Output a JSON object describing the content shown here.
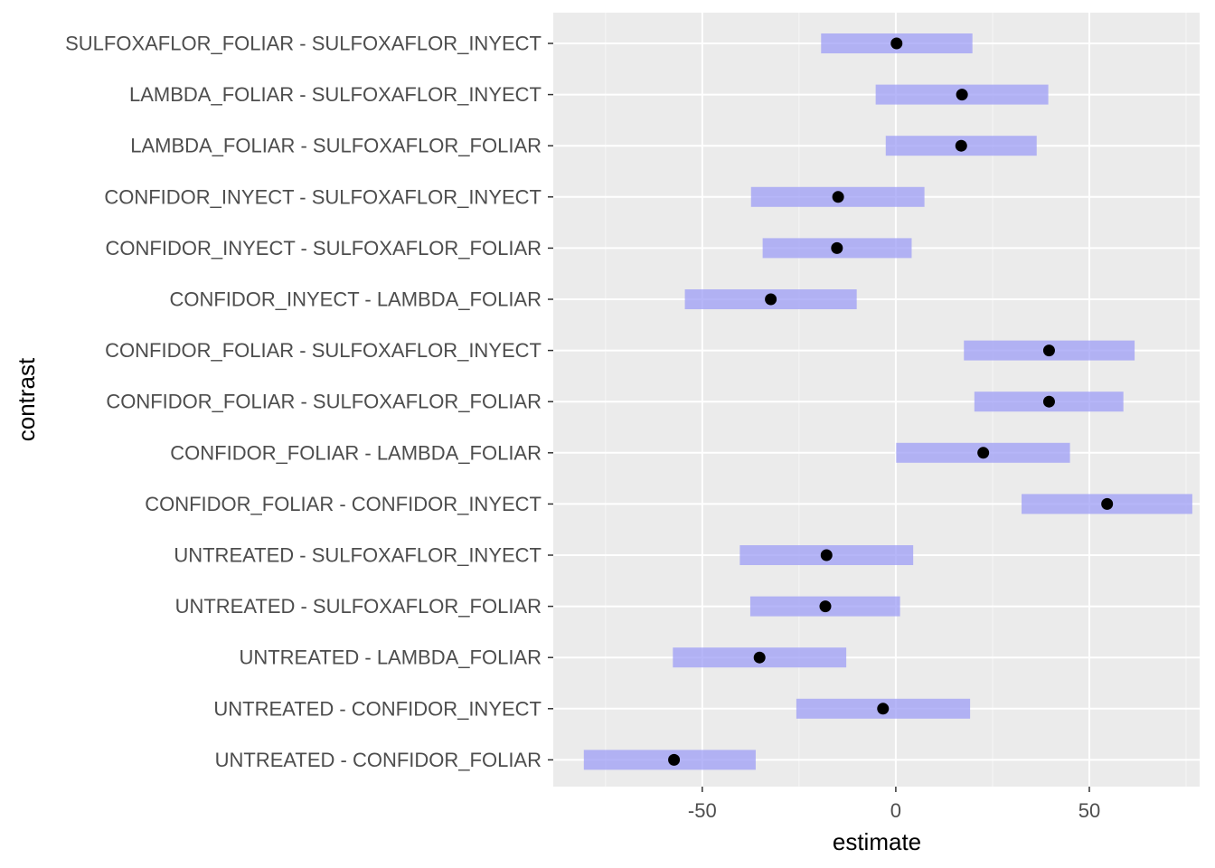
{
  "chart_data": {
    "type": "scatter",
    "xlabel": "estimate",
    "ylabel": "contrast",
    "xlim": [
      -88.5,
      78.5
    ],
    "x_ticks": [
      -50,
      0,
      50
    ],
    "x_tick_labels": [
      "-50",
      "0",
      "50"
    ],
    "grid": true,
    "legend": "none",
    "colors": {
      "panel_background": "#ebebeb",
      "grid_major": "#ffffff",
      "interval": "#9a9af5",
      "point": "#000000",
      "tick_text": "#4d4d4d"
    },
    "categories": [
      "SULFOXAFLOR_FOLIAR - SULFOXAFLOR_INYECT",
      "LAMBDA_FOLIAR - SULFOXAFLOR_INYECT",
      "LAMBDA_FOLIAR - SULFOXAFLOR_FOLIAR",
      "CONFIDOR_INYECT - SULFOXAFLOR_INYECT",
      "CONFIDOR_INYECT - SULFOXAFLOR_FOLIAR",
      "CONFIDOR_INYECT - LAMBDA_FOLIAR",
      "CONFIDOR_FOLIAR - SULFOXAFLOR_INYECT",
      "CONFIDOR_FOLIAR - SULFOXAFLOR_FOLIAR",
      "CONFIDOR_FOLIAR - LAMBDA_FOLIAR",
      "CONFIDOR_FOLIAR - CONFIDOR_INYECT",
      "UNTREATED - SULFOXAFLOR_INYECT",
      "UNTREATED - SULFOXAFLOR_FOLIAR",
      "UNTREATED - LAMBDA_FOLIAR",
      "UNTREATED - CONFIDOR_INYECT",
      "UNTREATED - CONFIDOR_FOLIAR"
    ],
    "estimate": [
      0.2,
      17.1,
      16.9,
      -14.9,
      -15.2,
      -32.3,
      39.6,
      39.6,
      22.6,
      54.6,
      -17.9,
      -18.2,
      -35.2,
      -3.3,
      -57.3
    ],
    "lower": [
      -19.3,
      -5.2,
      -2.6,
      -37.4,
      -34.4,
      -54.5,
      17.6,
      20.3,
      0.1,
      32.5,
      -40.3,
      -37.6,
      -57.6,
      -25.7,
      -80.6
    ],
    "upper": [
      19.8,
      39.4,
      36.4,
      7.4,
      4.1,
      -10.1,
      61.7,
      58.8,
      45.0,
      76.6,
      4.5,
      1.1,
      -12.8,
      19.2,
      -36.2
    ]
  }
}
